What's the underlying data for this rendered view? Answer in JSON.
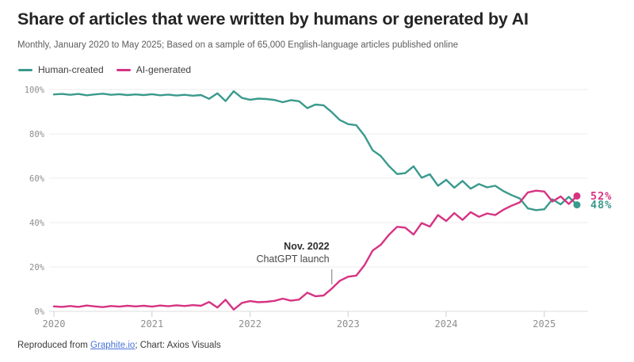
{
  "header": {
    "title": "Share of articles that were written by humans or generated by AI",
    "subtitle": "Monthly, January 2020 to May 2025; Based on a sample of 65,000 English-language articles published online"
  },
  "legend": {
    "items": [
      {
        "label": "Human-created",
        "color": "#3a9a8d"
      },
      {
        "label": "AI-generated",
        "color": "#d63383"
      }
    ]
  },
  "chart_data": {
    "type": "line",
    "x_interval": "monthly",
    "x_start": "2020-01",
    "x_end": "2025-05",
    "x_tick_labels": [
      "2020",
      "2021",
      "2022",
      "2023",
      "2024",
      "2025"
    ],
    "y_ticks": [
      0,
      20,
      40,
      60,
      80,
      100
    ],
    "y_tick_labels": [
      "0%",
      "20%",
      "40%",
      "60%",
      "80%",
      "100%"
    ],
    "ylim": [
      0,
      100
    ],
    "grid": "horizontal",
    "legend_position": "top-left",
    "series": [
      {
        "name": "Human-created",
        "color": "#3a9a8d",
        "end_label": "48%",
        "values": [
          97.8,
          98.0,
          97.6,
          98.0,
          97.4,
          97.8,
          98.1,
          97.6,
          97.9,
          97.5,
          97.8,
          97.5,
          97.9,
          97.4,
          97.7,
          97.3,
          97.6,
          97.2,
          97.5,
          95.8,
          98.3,
          94.8,
          99.2,
          96.2,
          95.4,
          95.9,
          95.7,
          95.3,
          94.3,
          95.2,
          94.7,
          91.6,
          93.2,
          92.9,
          89.8,
          86.2,
          84.4,
          83.9,
          79.2,
          72.6,
          70.0,
          65.5,
          61.9,
          62.3,
          65.4,
          60.2,
          61.8,
          56.6,
          59.3,
          55.7,
          58.8,
          55.3,
          57.4,
          55.9,
          56.6,
          54.2,
          52.4,
          50.9,
          46.4,
          45.6,
          46.0,
          50.5,
          48.2,
          51.6,
          48.0
        ]
      },
      {
        "name": "AI-generated",
        "color": "#d63383",
        "end_label": "52%",
        "values": [
          2.2,
          2.0,
          2.4,
          2.0,
          2.6,
          2.2,
          1.9,
          2.4,
          2.1,
          2.5,
          2.2,
          2.5,
          2.1,
          2.6,
          2.3,
          2.7,
          2.4,
          2.8,
          2.5,
          4.2,
          1.7,
          5.2,
          0.8,
          3.8,
          4.6,
          4.1,
          4.3,
          4.7,
          5.7,
          4.8,
          5.3,
          8.4,
          6.8,
          7.1,
          10.2,
          13.8,
          15.6,
          16.1,
          20.8,
          27.4,
          30.0,
          34.5,
          38.1,
          37.7,
          34.6,
          39.8,
          38.2,
          43.4,
          40.7,
          44.3,
          41.2,
          44.7,
          42.6,
          44.1,
          43.4,
          45.8,
          47.6,
          49.1,
          53.6,
          54.4,
          54.0,
          49.5,
          51.8,
          48.4,
          52.0
        ]
      }
    ],
    "annotation": {
      "line1": "Nov. 2022",
      "line2": "ChatGPT launch",
      "month_index": 34
    }
  },
  "footer": {
    "prefix": "Reproduced from ",
    "link_text": "Graphite.io",
    "suffix": "; Chart: Axios Visuals"
  }
}
